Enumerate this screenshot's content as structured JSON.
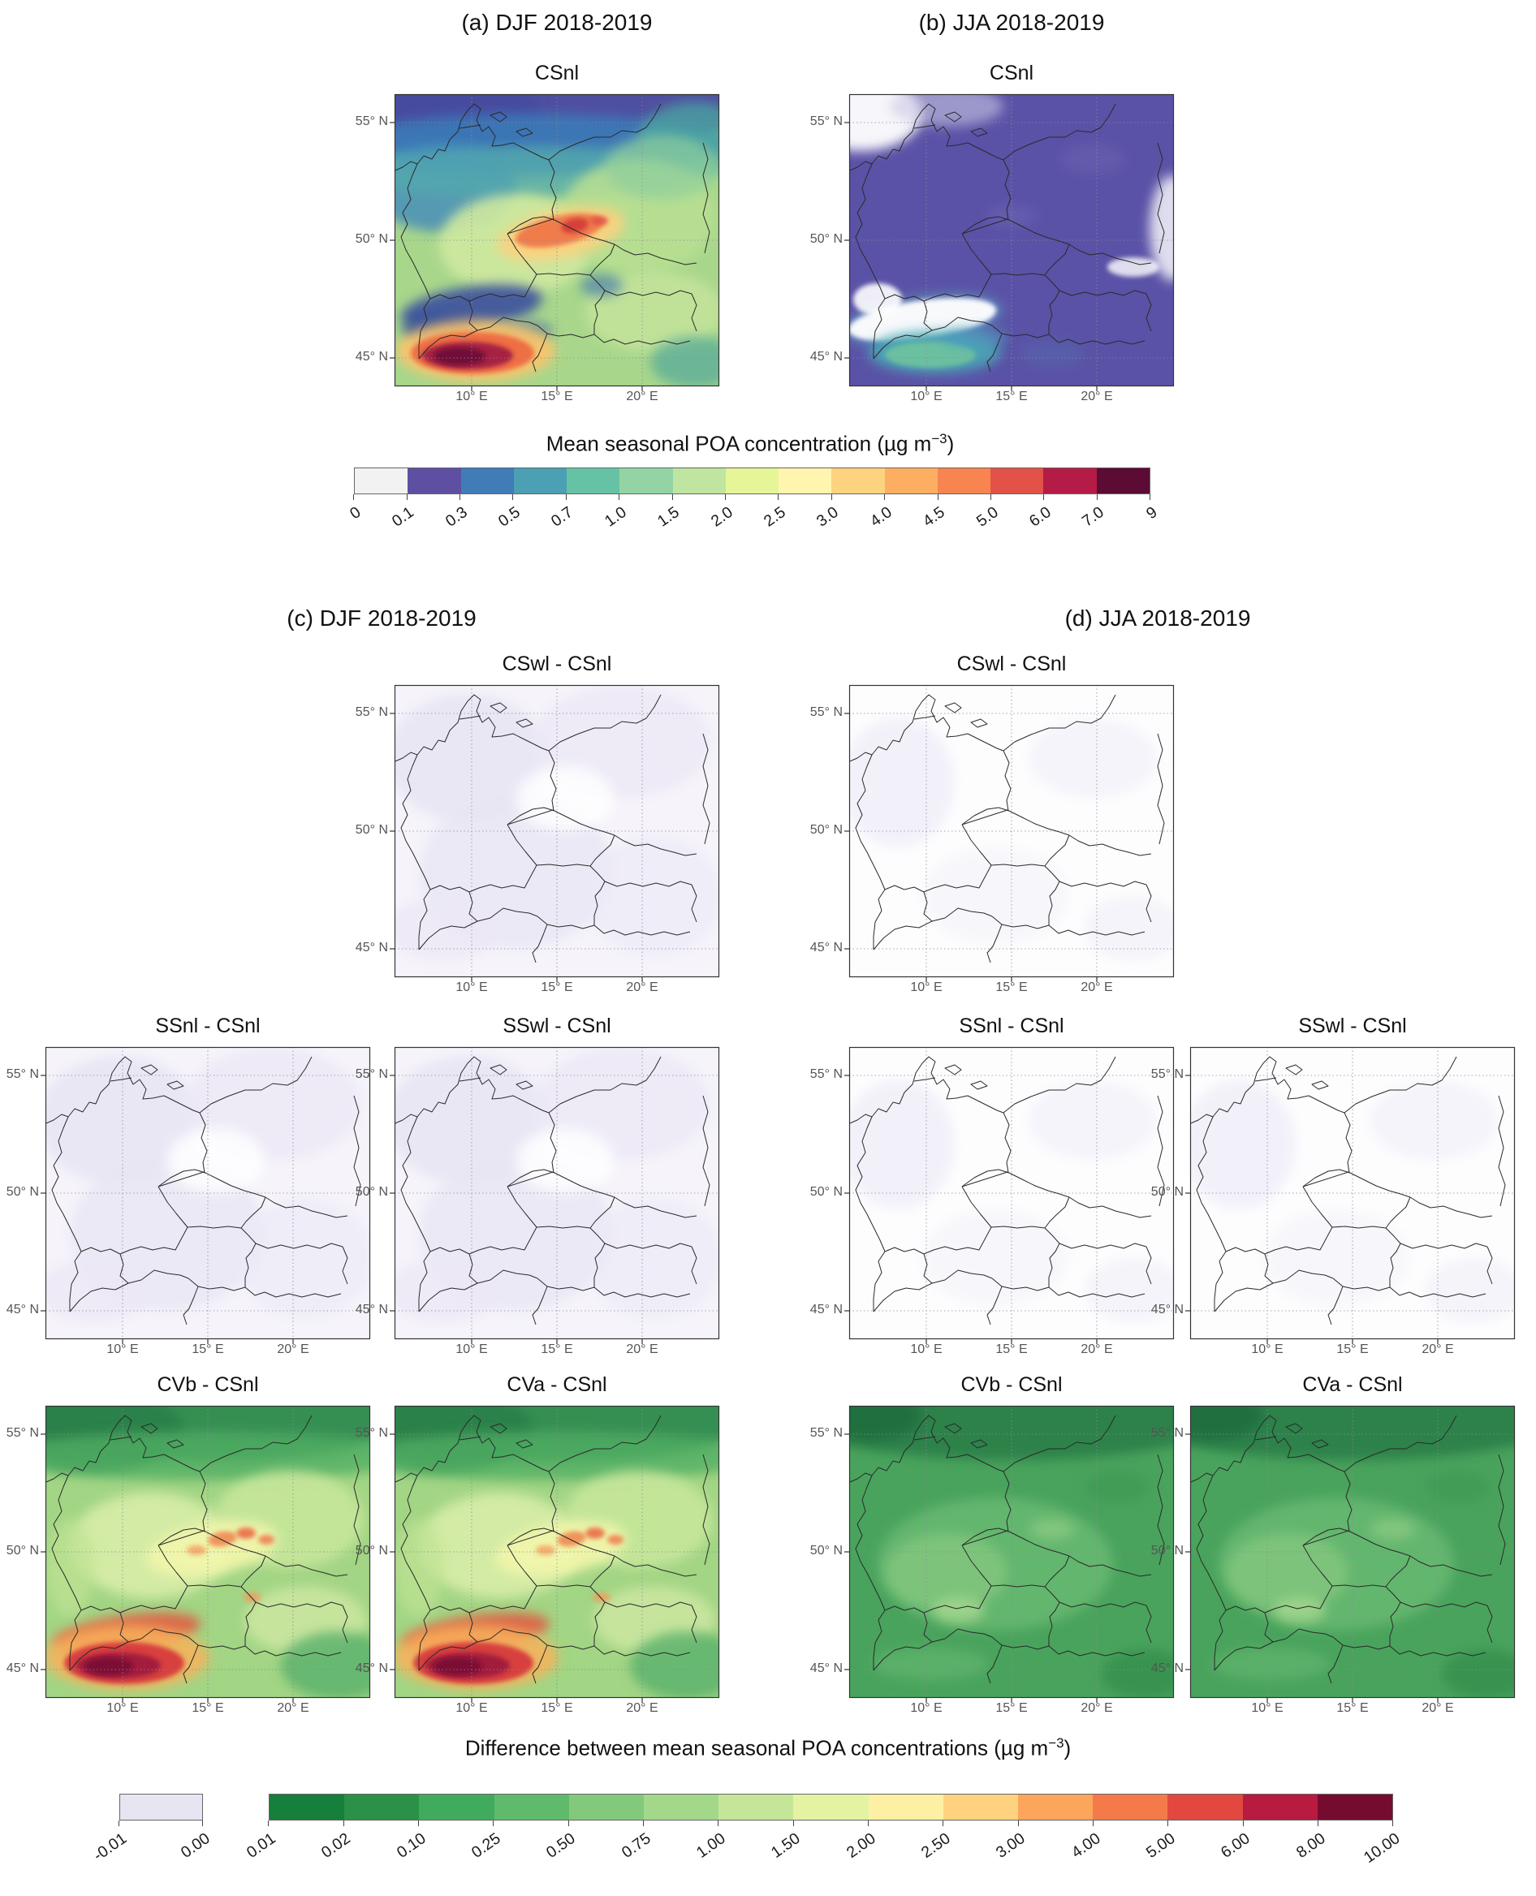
{
  "headers": {
    "a": "(a) DJF 2018-2019",
    "b": "(b) JJA 2018-2019",
    "c": "(c) DJF 2018-2019",
    "d": "(d) JJA 2018-2019"
  },
  "axes": {
    "lat": [
      "55° N",
      "50° N",
      "45° N"
    ],
    "lon": [
      "10° E",
      "15° E",
      "20° E"
    ]
  },
  "panels": {
    "top_djf": {
      "title": "CSnl"
    },
    "top_jja": {
      "title": "CSnl"
    },
    "djf_cswl": {
      "title": "CSwl - CSnl"
    },
    "jja_cswl": {
      "title": "CSwl - CSnl"
    },
    "djf_ssnl": {
      "title": "SSnl - CSnl"
    },
    "djf_sswl": {
      "title": "SSwl - CSnl"
    },
    "jja_ssnl": {
      "title": "SSnl - CSnl"
    },
    "jja_sswl": {
      "title": "SSwl - CSnl"
    },
    "djf_cvb": {
      "title": "CVb - CSnl"
    },
    "djf_cva": {
      "title": "CVa - CSnl"
    },
    "jja_cvb": {
      "title": "CVb - CSnl"
    },
    "jja_cva": {
      "title": "CVa - CSnl"
    }
  },
  "colorbar_top": {
    "title": "Mean seasonal POA concentration (µg m",
    "title_sup": "−3",
    "title_end": ")",
    "ticks": [
      "0",
      "0.1",
      "0.3",
      "0.5",
      "0.7",
      "1.0",
      "1.5",
      "2.0",
      "2.5",
      "3.0",
      "4.0",
      "4.5",
      "5.0",
      "6.0",
      "7.0",
      "9"
    ],
    "colors": [
      "#f2f2f2",
      "#5e4fa2",
      "#3f7cb8",
      "#4ba0b3",
      "#66c2a5",
      "#94d4a4",
      "#bfe5a0",
      "#e6f598",
      "#fff5ae",
      "#fdd380",
      "#fdae61",
      "#f88450",
      "#e25249",
      "#b51b47",
      "#5c0b34"
    ]
  },
  "colorbar_bottom": {
    "title": "Difference between mean seasonal POA concentrations (µg m",
    "title_sup": "−3",
    "title_end": ")",
    "neg_ticks": [
      "-0.01",
      "0.00"
    ],
    "neg_color": "#e8e5f3",
    "ticks": [
      "0.01",
      "0.02",
      "0.10",
      "0.25",
      "0.50",
      "0.75",
      "1.00",
      "1.50",
      "2.00",
      "2.50",
      "3.00",
      "4.00",
      "5.00",
      "6.00",
      "8.00",
      "10.00"
    ],
    "colors": [
      "#157f3b",
      "#2b9048",
      "#41ab5d",
      "#60ba6c",
      "#82c97c",
      "#a3d789",
      "#c5e698",
      "#e4f3a2",
      "#fdf0a4",
      "#fed27f",
      "#fba65c",
      "#f47a4a",
      "#e2483f",
      "#b81b3f",
      "#750c30"
    ]
  }
}
